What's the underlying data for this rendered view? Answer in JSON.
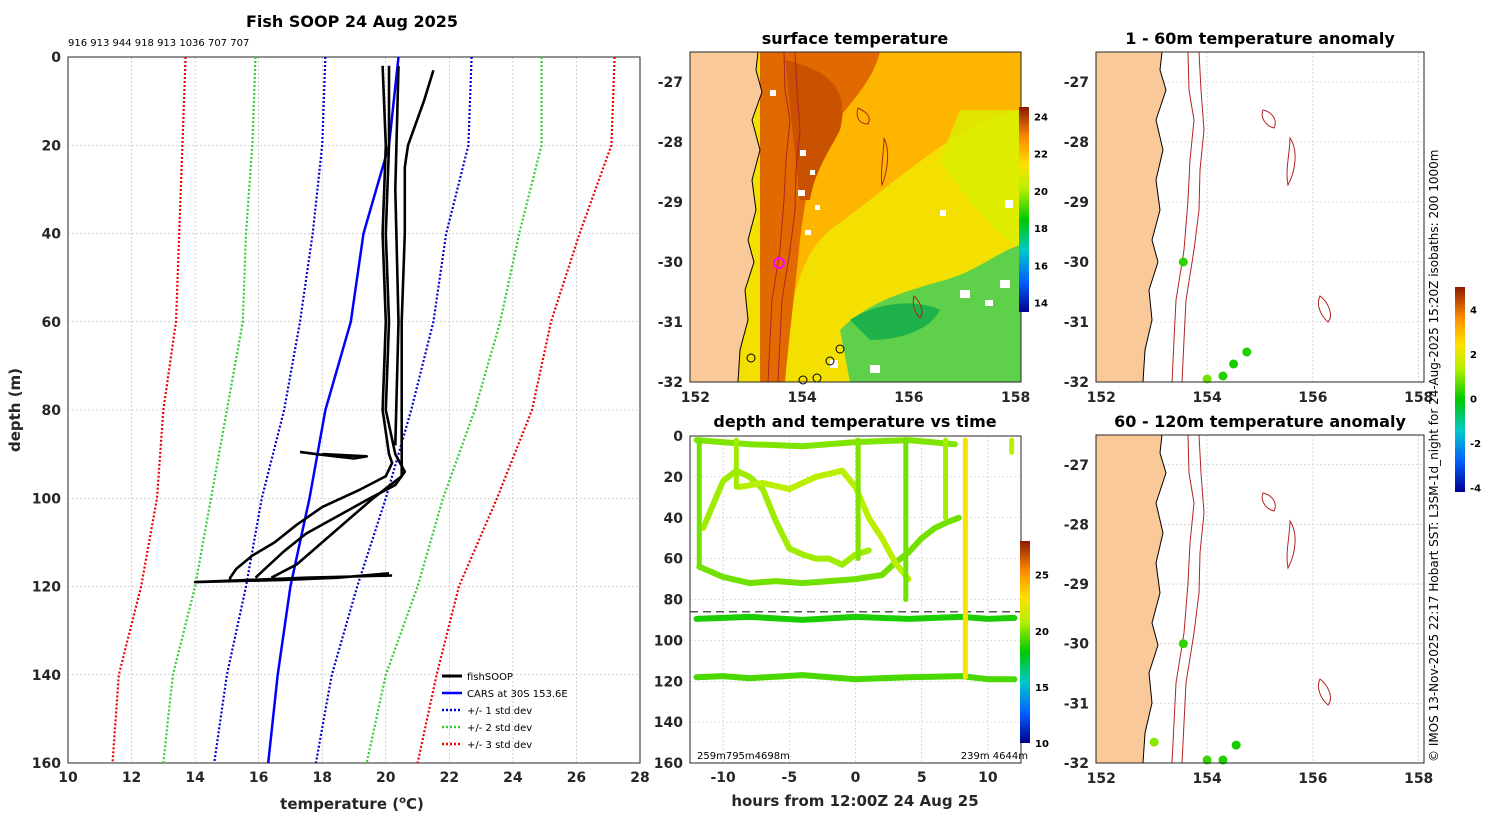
{
  "figure_title": "Fish SOOP 24 Aug 2025",
  "vertical_credit": "© IMOS 13-Nov-2025 22:17 Hobart SST: L3SM-1d_night for 24-Aug-2025 15:20Z isobaths: 200  1000m",
  "colors": {
    "land": "#f9c99a",
    "fishsoop": "#000000",
    "cars": "#0000ff",
    "std1": "#0000cc",
    "std2": "#33cc33",
    "std3": "#ee0000",
    "isobath": "#b22222"
  },
  "chart_data": [
    {
      "id": "profile",
      "type": "line",
      "title": "Fish SOOP 24 Aug 2025",
      "subtitle_depths": "916 913 944 918 913 1036 707 707",
      "xlabel_main": "temperature (",
      "xlabel_sup": "o",
      "xlabel_end": "C)",
      "ylabel": "depth (m)",
      "xlim": [
        10,
        28
      ],
      "ylim": [
        0,
        160
      ],
      "xticks": [
        10,
        12,
        14,
        16,
        18,
        20,
        22,
        24,
        26,
        28
      ],
      "yticks": [
        0,
        20,
        40,
        60,
        80,
        100,
        120,
        140,
        160
      ],
      "legend": [
        "fishSOOP",
        "CARS at 30S 153.6E",
        "+/- 1 std dev",
        "+/- 2 std dev",
        "+/- 3 std dev"
      ],
      "series": [
        {
          "name": "cars",
          "depth": [
            0,
            20,
            40,
            60,
            80,
            100,
            120,
            140,
            160
          ],
          "temp": [
            20.4,
            20.1,
            19.3,
            18.9,
            18.1,
            17.6,
            17.0,
            16.6,
            16.3
          ]
        },
        {
          "name": "std1_left",
          "depth": [
            0,
            20,
            40,
            60,
            80,
            100,
            120,
            140,
            160
          ],
          "temp": [
            18.1,
            18.0,
            17.7,
            17.3,
            16.8,
            16.1,
            15.6,
            15.0,
            14.6
          ]
        },
        {
          "name": "std1_right",
          "depth": [
            0,
            20,
            40,
            60,
            80,
            100,
            120,
            140,
            160
          ],
          "temp": [
            22.7,
            22.6,
            21.9,
            21.5,
            20.8,
            20.0,
            19.1,
            18.3,
            17.8
          ]
        },
        {
          "name": "std2_left",
          "depth": [
            0,
            20,
            40,
            60,
            80,
            100,
            120,
            140,
            160
          ],
          "temp": [
            15.9,
            15.8,
            15.6,
            15.5,
            15.0,
            14.5,
            14.0,
            13.3,
            13.0
          ]
        },
        {
          "name": "std2_right",
          "depth": [
            0,
            20,
            40,
            60,
            80,
            100,
            120,
            140,
            160
          ],
          "temp": [
            24.9,
            24.9,
            24.2,
            23.6,
            22.8,
            21.8,
            21.0,
            20.0,
            19.4
          ]
        },
        {
          "name": "std3_left",
          "depth": [
            0,
            20,
            40,
            60,
            80,
            100,
            120,
            140,
            160
          ],
          "temp": [
            13.7,
            13.6,
            13.5,
            13.4,
            13.0,
            12.8,
            12.3,
            11.6,
            11.4
          ]
        },
        {
          "name": "std3_right",
          "depth": [
            0,
            20,
            40,
            60,
            80,
            100,
            120,
            140,
            160
          ],
          "temp": [
            27.2,
            27.1,
            26.1,
            25.2,
            24.6,
            23.5,
            22.3,
            21.6,
            21.0
          ]
        },
        {
          "name": "fish_a",
          "depth": [
            2,
            20,
            40,
            60,
            80,
            90,
            92,
            95,
            98,
            102,
            106,
            110,
            113,
            116,
            118,
            119
          ],
          "temp": [
            19.9,
            20.0,
            19.9,
            20.0,
            19.9,
            20.1,
            20.2,
            20.0,
            19.2,
            18.0,
            17.2,
            16.5,
            15.8,
            15.3,
            15.1,
            15.1
          ]
        },
        {
          "name": "fish_b",
          "depth": [
            2,
            20,
            40,
            60,
            80,
            90,
            94,
            97,
            100,
            104,
            108,
            112,
            116,
            118
          ],
          "temp": [
            20.1,
            20.1,
            20.0,
            20.1,
            20.0,
            20.3,
            20.6,
            20.3,
            19.5,
            18.5,
            17.5,
            16.8,
            16.2,
            15.9
          ]
        },
        {
          "name": "fish_c",
          "depth": [
            3,
            10,
            20,
            25,
            40,
            60,
            80,
            90,
            95,
            100,
            105,
            110,
            115,
            118
          ],
          "temp": [
            21.5,
            21.2,
            20.7,
            20.6,
            20.6,
            20.5,
            20.5,
            20.5,
            20.5,
            19.6,
            18.8,
            18.0,
            17.2,
            16.4
          ]
        },
        {
          "name": "fish_d",
          "depth": [
            2,
            30,
            60,
            88
          ],
          "temp": [
            20.4,
            20.3,
            20.4,
            20.3
          ]
        },
        {
          "name": "fish_e",
          "depth": [
            89.5,
            90,
            90.5,
            91,
            90.5,
            90
          ],
          "temp": [
            17.3,
            17.8,
            18.4,
            19.0,
            19.4,
            18.0
          ]
        },
        {
          "name": "fish_f",
          "depth": [
            117,
            118,
            118.5,
            119,
            118,
            117.5
          ],
          "temp": [
            20.1,
            18.5,
            16.8,
            14.0,
            17.5,
            20.2
          ]
        }
      ]
    },
    {
      "id": "sst",
      "type": "heatmap",
      "title": "surface temperature",
      "xlim": [
        151.9,
        158.1
      ],
      "ylim": [
        -32,
        -26.5
      ],
      "xticks": [
        "152",
        "154",
        "156",
        "158"
      ],
      "yticks": [
        "-27",
        "-28",
        "-29",
        "-30",
        "-31",
        "-32"
      ],
      "colorbar_range": [
        13.5,
        24.5
      ],
      "colorbar_ticks": [
        "14",
        "16",
        "18",
        "20",
        "22",
        "24"
      ],
      "fish_position": [
        153.55,
        -30.0
      ]
    },
    {
      "id": "anom1",
      "type": "scatter",
      "title": "1 - 60m temperature anomaly",
      "xlim": [
        151.9,
        158.1
      ],
      "ylim": [
        -32,
        -26.5
      ],
      "xticks": [
        "152",
        "154",
        "156",
        "158"
      ],
      "yticks": [
        "-27",
        "-28",
        "-29",
        "-30",
        "-31",
        "-32"
      ],
      "colorbar_range": [
        -4.2,
        5.0
      ],
      "colorbar_ticks": [
        "4",
        "2",
        "0",
        "-2",
        "-4"
      ],
      "points": [
        {
          "lon": 153.55,
          "lat": -30.0,
          "anom": 0.3
        },
        {
          "lon": 154.0,
          "lat": -31.95,
          "anom": 0.8
        },
        {
          "lon": 154.3,
          "lat": -31.9,
          "anom": 0.2
        },
        {
          "lon": 154.5,
          "lat": -31.7,
          "anom": 0.1
        },
        {
          "lon": 154.75,
          "lat": -31.5,
          "anom": 0.2
        }
      ]
    },
    {
      "id": "anom2",
      "type": "scatter",
      "title": "60 - 120m temperature anomaly",
      "xlim": [
        151.9,
        158.1
      ],
      "ylim": [
        -32,
        -26.5
      ],
      "xticks": [
        "152",
        "154",
        "156",
        "158"
      ],
      "yticks": [
        "-27",
        "-28",
        "-29",
        "-30",
        "-31",
        "-32"
      ],
      "points": [
        {
          "lon": 153.55,
          "lat": -30.0,
          "anom": 0.3
        },
        {
          "lon": 153.0,
          "lat": -31.65,
          "anom": 1.0
        },
        {
          "lon": 154.0,
          "lat": -31.95,
          "anom": 0.4
        },
        {
          "lon": 154.3,
          "lat": -31.95,
          "anom": 0.2
        },
        {
          "lon": 154.55,
          "lat": -31.7,
          "anom": 0.1
        }
      ]
    },
    {
      "id": "timeseries",
      "type": "scatter",
      "title": "depth and temperature vs time",
      "xlabel": "hours from 12:00Z 24 Aug 25",
      "xlim": [
        -12.5,
        12.5
      ],
      "ylim": [
        0,
        160
      ],
      "xticks": [
        -10,
        -5,
        0,
        5,
        10
      ],
      "yticks": [
        0,
        20,
        40,
        60,
        80,
        100,
        120,
        140,
        160
      ],
      "reference_depth": 86,
      "colorbar_range": [
        10,
        28
      ],
      "colorbar_ticks": [
        "25",
        "20",
        "15",
        "10"
      ],
      "bottom_left_label": "259m795m4698m",
      "bottom_right_label": "239m  4644m",
      "tracks": [
        {
          "temp": 19.8,
          "t": [
            -11.8,
            -10,
            -8,
            -6,
            -4,
            -2,
            0,
            2,
            3,
            4,
            5,
            6,
            7,
            7.8
          ],
          "d": [
            64,
            69,
            72,
            71,
            72,
            71,
            70,
            68,
            62,
            57,
            50,
            45,
            42,
            40
          ]
        },
        {
          "temp": 20.5,
          "t": [
            -11.5,
            -10,
            -9,
            -8,
            -7,
            -6,
            -5,
            -4,
            -3,
            -2,
            -1,
            0,
            1
          ],
          "d": [
            45,
            22,
            17,
            20,
            26,
            42,
            55,
            58,
            60,
            60,
            63,
            58,
            56
          ]
        },
        {
          "temp": 21.0,
          "t": [
            -8.8,
            -7,
            -5,
            -3,
            -1,
            0,
            1,
            2,
            3,
            4
          ],
          "d": [
            25,
            23,
            26,
            20,
            17,
            25,
            40,
            50,
            62,
            70
          ]
        },
        {
          "temp": 20.0,
          "t": [
            -12,
            -8,
            -4,
            0,
            4,
            7.5
          ],
          "d": [
            2,
            4,
            5,
            3,
            2,
            4
          ]
        },
        {
          "temp": 18.5,
          "t": [
            -12,
            -8,
            -4,
            0,
            4,
            8,
            10,
            12
          ],
          "d": [
            89.5,
            88.5,
            90,
            88.5,
            89.5,
            88.5,
            89.5,
            89
          ]
        },
        {
          "temp": 19.2,
          "t": [
            -12,
            -10,
            -8,
            -4,
            0,
            4,
            8,
            10,
            12
          ],
          "d": [
            118,
            117.5,
            118.5,
            117,
            119,
            118,
            117.5,
            119,
            119
          ]
        }
      ],
      "verticals": [
        {
          "t": -11.8,
          "d1": 2,
          "d2": 64,
          "temp": 19.8
        },
        {
          "t": -9.0,
          "d1": 2,
          "d2": 25,
          "temp": 20.5
        },
        {
          "t": 0.2,
          "d1": 2,
          "d2": 60,
          "temp": 20.0
        },
        {
          "t": 3.8,
          "d1": 2,
          "d2": 80,
          "temp": 19.8
        },
        {
          "t": 6.8,
          "d1": 2,
          "d2": 40,
          "temp": 20.6
        },
        {
          "t": 8.3,
          "d1": 2,
          "d2": 118,
          "temp": 22.8
        },
        {
          "t": 11.8,
          "d1": 2,
          "d2": 8,
          "temp": 21.0
        }
      ]
    }
  ]
}
